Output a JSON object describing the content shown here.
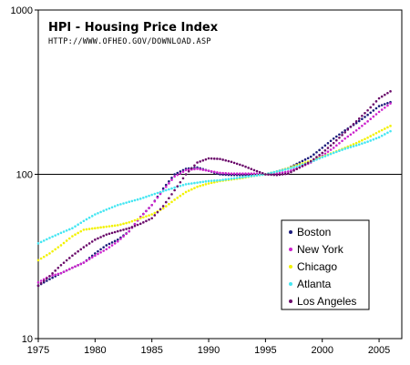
{
  "chart_data": {
    "type": "scatter",
    "title": "HPI - Housing Price Index",
    "subtitle": "HTTP://WWW.OFHEO.GOV/DOWNLOAD.ASP",
    "xlabel": "",
    "ylabel": "",
    "y_scale": "log",
    "xlim": [
      1975,
      2007
    ],
    "ylim": [
      10,
      1000
    ],
    "x_ticks": [
      "1975",
      "1980",
      "1985",
      "1990",
      "1995",
      "2000",
      "2005"
    ],
    "y_ticks": [
      "10",
      "100",
      "1000"
    ],
    "reference_line_y": 100,
    "grid": false,
    "legend_position": "bottom-right",
    "series": [
      {
        "name": "Boston",
        "color": "#1a1a7a",
        "points": [
          [
            1975.0,
            21
          ],
          [
            1976.0,
            23
          ],
          [
            1977.0,
            25
          ],
          [
            1978.0,
            27
          ],
          [
            1979.0,
            29
          ],
          [
            1980.0,
            33
          ],
          [
            1981.0,
            37
          ],
          [
            1982.0,
            40
          ],
          [
            1983.0,
            45
          ],
          [
            1984.0,
            55
          ],
          [
            1985.0,
            65
          ],
          [
            1986.0,
            82
          ],
          [
            1987.0,
            100
          ],
          [
            1988.0,
            108
          ],
          [
            1989.0,
            110
          ],
          [
            1990.0,
            105
          ],
          [
            1991.0,
            100
          ],
          [
            1992.0,
            99
          ],
          [
            1993.0,
            99
          ],
          [
            1994.0,
            99
          ],
          [
            1995.0,
            100
          ],
          [
            1996.0,
            104
          ],
          [
            1997.0,
            109
          ],
          [
            1998.0,
            118
          ],
          [
            1999.0,
            128
          ],
          [
            2000.0,
            145
          ],
          [
            2001.0,
            165
          ],
          [
            2002.0,
            185
          ],
          [
            2003.0,
            205
          ],
          [
            2004.0,
            230
          ],
          [
            2005.0,
            260
          ],
          [
            2006.0,
            275
          ]
        ]
      },
      {
        "name": "New York",
        "color": "#cc22cc",
        "points": [
          [
            1975.0,
            22
          ],
          [
            1976.0,
            24
          ],
          [
            1977.0,
            25
          ],
          [
            1978.0,
            27
          ],
          [
            1979.0,
            29
          ],
          [
            1980.0,
            32
          ],
          [
            1981.0,
            35
          ],
          [
            1982.0,
            39
          ],
          [
            1983.0,
            45
          ],
          [
            1984.0,
            55
          ],
          [
            1985.0,
            65
          ],
          [
            1986.0,
            80
          ],
          [
            1987.0,
            97
          ],
          [
            1988.0,
            106
          ],
          [
            1989.0,
            108
          ],
          [
            1990.0,
            105
          ],
          [
            1991.0,
            102
          ],
          [
            1992.0,
            101
          ],
          [
            1993.0,
            101
          ],
          [
            1994.0,
            101
          ],
          [
            1995.0,
            100
          ],
          [
            1996.0,
            101
          ],
          [
            1997.0,
            104
          ],
          [
            1998.0,
            110
          ],
          [
            1999.0,
            118
          ],
          [
            2000.0,
            130
          ],
          [
            2001.0,
            145
          ],
          [
            2002.0,
            165
          ],
          [
            2003.0,
            185
          ],
          [
            2004.0,
            210
          ],
          [
            2005.0,
            240
          ],
          [
            2006.0,
            270
          ]
        ]
      },
      {
        "name": "Chicago",
        "color": "#f2f200",
        "points": [
          [
            1975.0,
            30
          ],
          [
            1976.0,
            33
          ],
          [
            1977.0,
            37
          ],
          [
            1978.0,
            42
          ],
          [
            1979.0,
            46
          ],
          [
            1980.0,
            47
          ],
          [
            1981.0,
            48
          ],
          [
            1982.0,
            49
          ],
          [
            1983.0,
            51
          ],
          [
            1984.0,
            54
          ],
          [
            1985.0,
            57
          ],
          [
            1986.0,
            62
          ],
          [
            1987.0,
            70
          ],
          [
            1988.0,
            78
          ],
          [
            1989.0,
            84
          ],
          [
            1990.0,
            88
          ],
          [
            1991.0,
            91
          ],
          [
            1992.0,
            93
          ],
          [
            1993.0,
            95
          ],
          [
            1994.0,
            98
          ],
          [
            1995.0,
            100
          ],
          [
            1996.0,
            104
          ],
          [
            1997.0,
            109
          ],
          [
            1998.0,
            115
          ],
          [
            1999.0,
            121
          ],
          [
            2000.0,
            128
          ],
          [
            2001.0,
            136
          ],
          [
            2002.0,
            145
          ],
          [
            2003.0,
            155
          ],
          [
            2004.0,
            167
          ],
          [
            2005.0,
            182
          ],
          [
            2006.0,
            197
          ]
        ]
      },
      {
        "name": "Atlanta",
        "color": "#44e6f2",
        "points": [
          [
            1975.0,
            38
          ],
          [
            1976.0,
            41
          ],
          [
            1977.0,
            44
          ],
          [
            1978.0,
            47
          ],
          [
            1979.0,
            52
          ],
          [
            1980.0,
            57
          ],
          [
            1981.0,
            61
          ],
          [
            1982.0,
            65
          ],
          [
            1983.0,
            68
          ],
          [
            1984.0,
            71
          ],
          [
            1985.0,
            75
          ],
          [
            1986.0,
            79
          ],
          [
            1987.0,
            83
          ],
          [
            1988.0,
            87
          ],
          [
            1989.0,
            89
          ],
          [
            1990.0,
            91
          ],
          [
            1991.0,
            92
          ],
          [
            1992.0,
            94
          ],
          [
            1993.0,
            96
          ],
          [
            1994.0,
            98
          ],
          [
            1995.0,
            100
          ],
          [
            1996.0,
            104
          ],
          [
            1997.0,
            108
          ],
          [
            1998.0,
            113
          ],
          [
            1999.0,
            119
          ],
          [
            2000.0,
            127
          ],
          [
            2001.0,
            135
          ],
          [
            2002.0,
            143
          ],
          [
            2003.0,
            150
          ],
          [
            2004.0,
            158
          ],
          [
            2005.0,
            168
          ],
          [
            2006.0,
            183
          ]
        ]
      },
      {
        "name": "Los Angeles",
        "color": "#6a0a6a",
        "points": [
          [
            1975.0,
            21
          ],
          [
            1976.0,
            24
          ],
          [
            1977.0,
            28
          ],
          [
            1978.0,
            32
          ],
          [
            1979.0,
            36
          ],
          [
            1980.0,
            40
          ],
          [
            1981.0,
            43
          ],
          [
            1982.0,
            45
          ],
          [
            1983.0,
            47
          ],
          [
            1984.0,
            50
          ],
          [
            1985.0,
            54
          ],
          [
            1986.0,
            64
          ],
          [
            1987.0,
            80
          ],
          [
            1988.0,
            100
          ],
          [
            1989.0,
            118
          ],
          [
            1990.0,
            125
          ],
          [
            1991.0,
            124
          ],
          [
            1992.0,
            119
          ],
          [
            1993.0,
            113
          ],
          [
            1994.0,
            106
          ],
          [
            1995.0,
            100
          ],
          [
            1996.0,
            99
          ],
          [
            1997.0,
            101
          ],
          [
            1998.0,
            110
          ],
          [
            1999.0,
            120
          ],
          [
            2000.0,
            135
          ],
          [
            2001.0,
            155
          ],
          [
            2002.0,
            180
          ],
          [
            2003.0,
            210
          ],
          [
            2004.0,
            245
          ],
          [
            2005.0,
            290
          ],
          [
            2006.0,
            320
          ]
        ]
      }
    ]
  }
}
